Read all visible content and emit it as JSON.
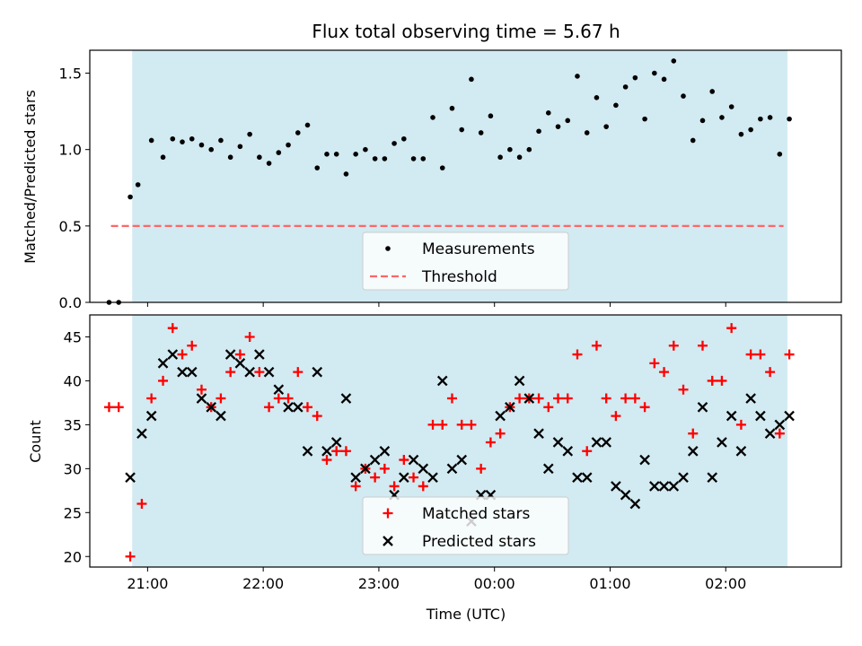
{
  "chart_data": [
    {
      "type": "scatter",
      "title": "Flux total observing time = 5.67 h",
      "ylabel": "Matched/Predicted stars",
      "xlabel": "",
      "ylim": [
        0,
        1.65
      ],
      "xlim_hours": [
        20.5,
        27.0
      ],
      "yticks": [
        "0.0",
        "0.5",
        "1.0",
        "1.5"
      ],
      "shaded_interval": [
        "20:52",
        "26:32"
      ],
      "shade_color": "#add8e6",
      "grid": false,
      "legend_position": "bottom-center",
      "legend": [
        "Measurements",
        "Threshold"
      ],
      "threshold": {
        "value": 0.5,
        "color": "#ff6666",
        "x_range": [
          "20:41",
          "26:30"
        ]
      },
      "series": [
        {
          "name": "Measurements",
          "marker": "dot",
          "color": "#000000",
          "x": [
            "20:40",
            "20:45",
            "20:51",
            "20:55",
            "21:02",
            "21:08",
            "21:13",
            "21:18",
            "21:23",
            "21:28",
            "21:33",
            "21:38",
            "21:43",
            "21:48",
            "21:53",
            "21:58",
            "22:03",
            "22:08",
            "22:13",
            "22:18",
            "22:23",
            "22:28",
            "22:33",
            "22:38",
            "22:43",
            "22:48",
            "22:53",
            "22:58",
            "23:03",
            "23:08",
            "23:13",
            "23:18",
            "23:23",
            "23:28",
            "23:33",
            "23:38",
            "23:43",
            "23:48",
            "23:53",
            "23:58",
            "24:03",
            "24:08",
            "24:13",
            "24:18",
            "24:23",
            "24:28",
            "24:33",
            "24:38",
            "24:43",
            "24:48",
            "24:53",
            "24:58",
            "25:03",
            "25:08",
            "25:13",
            "25:18",
            "25:23",
            "25:28",
            "25:33",
            "25:38",
            "25:43",
            "25:48",
            "25:53",
            "25:58",
            "26:03",
            "26:08",
            "26:13",
            "26:18",
            "26:23",
            "26:28",
            "26:33"
          ],
          "y": [
            0.0,
            0.0,
            0.69,
            0.77,
            1.06,
            0.95,
            1.07,
            1.05,
            1.07,
            1.03,
            1.0,
            1.06,
            0.95,
            1.02,
            1.1,
            0.95,
            0.91,
            0.98,
            1.03,
            1.11,
            1.16,
            0.88,
            0.97,
            0.97,
            0.84,
            0.97,
            1.0,
            0.94,
            0.94,
            1.04,
            1.07,
            0.94,
            0.94,
            1.21,
            0.88,
            1.27,
            1.13,
            1.46,
            1.11,
            1.22,
            0.95,
            1.0,
            0.95,
            1.0,
            1.12,
            1.24,
            1.15,
            1.19,
            1.48,
            1.11,
            1.34,
            1.15,
            1.29,
            1.41,
            1.47,
            1.2,
            1.5,
            1.46,
            1.58,
            1.35,
            1.06,
            1.19,
            1.38,
            1.21,
            1.28,
            1.1,
            1.13,
            1.2,
            1.21,
            0.97,
            1.2
          ]
        }
      ]
    },
    {
      "type": "scatter",
      "title": "",
      "xlabel": "Time (UTC)",
      "ylabel": "Count",
      "ylim": [
        18.8,
        47.5
      ],
      "xlim_hours": [
        20.5,
        27.0
      ],
      "yticks": [
        "20",
        "25",
        "30",
        "35",
        "40",
        "45"
      ],
      "xticks": [
        "21:00",
        "22:00",
        "23:00",
        "00:00",
        "01:00",
        "02:00"
      ],
      "shaded_interval": [
        "20:52",
        "26:32"
      ],
      "shade_color": "#add8e6",
      "grid": false,
      "legend_position": "bottom-center",
      "legend": [
        "Matched stars",
        "Predicted stars"
      ],
      "series": [
        {
          "name": "Matched stars",
          "marker": "plus",
          "color": "#ff0000",
          "x": [
            "20:40",
            "20:45",
            "20:51",
            "20:57",
            "21:02",
            "21:08",
            "21:13",
            "21:18",
            "21:23",
            "21:28",
            "21:33",
            "21:38",
            "21:43",
            "21:48",
            "21:53",
            "21:58",
            "22:03",
            "22:08",
            "22:13",
            "22:18",
            "22:23",
            "22:28",
            "22:33",
            "22:38",
            "22:43",
            "22:48",
            "22:53",
            "22:58",
            "23:03",
            "23:08",
            "23:13",
            "23:18",
            "23:23",
            "23:28",
            "23:33",
            "23:38",
            "23:43",
            "23:48",
            "23:53",
            "23:58",
            "24:03",
            "24:08",
            "24:13",
            "24:18",
            "24:23",
            "24:28",
            "24:33",
            "24:38",
            "24:43",
            "24:48",
            "24:53",
            "24:58",
            "25:03",
            "25:08",
            "25:13",
            "25:18",
            "25:23",
            "25:28",
            "25:33",
            "25:38",
            "25:43",
            "25:48",
            "25:53",
            "25:58",
            "26:03",
            "26:08",
            "26:13",
            "26:18",
            "26:23",
            "26:28",
            "26:33"
          ],
          "y": [
            37,
            37,
            20,
            26,
            38,
            40,
            46,
            43,
            44,
            39,
            37,
            38,
            41,
            43,
            45,
            41,
            37,
            38,
            38,
            41,
            37,
            36,
            31,
            32,
            32,
            28,
            30,
            29,
            30,
            28,
            31,
            29,
            28,
            35,
            35,
            38,
            35,
            35,
            30,
            33,
            34,
            37,
            38,
            38,
            38,
            37,
            38,
            38,
            43,
            32,
            44,
            38,
            36,
            38,
            38,
            37,
            42,
            41,
            44,
            39,
            34,
            44,
            40,
            40,
            46,
            35,
            43,
            43,
            41,
            34,
            43
          ]
        },
        {
          "name": "Predicted stars",
          "marker": "x",
          "color": "#000000",
          "x": [
            "20:51",
            "20:57",
            "21:02",
            "21:08",
            "21:13",
            "21:18",
            "21:23",
            "21:28",
            "21:33",
            "21:38",
            "21:43",
            "21:48",
            "21:53",
            "21:58",
            "22:03",
            "22:08",
            "22:13",
            "22:18",
            "22:23",
            "22:28",
            "22:33",
            "22:38",
            "22:43",
            "22:48",
            "22:53",
            "22:58",
            "23:03",
            "23:08",
            "23:13",
            "23:18",
            "23:23",
            "23:28",
            "23:33",
            "23:38",
            "23:43",
            "23:48",
            "23:53",
            "23:58",
            "24:03",
            "24:08",
            "24:13",
            "24:18",
            "24:23",
            "24:28",
            "24:33",
            "24:38",
            "24:43",
            "24:48",
            "24:53",
            "24:58",
            "25:03",
            "25:08",
            "25:13",
            "25:18",
            "25:23",
            "25:28",
            "25:33",
            "25:38",
            "25:43",
            "25:48",
            "25:53",
            "25:58",
            "26:03",
            "26:08",
            "26:13",
            "26:18",
            "26:23",
            "26:28",
            "26:33"
          ],
          "y": [
            29,
            34,
            36,
            42,
            43,
            41,
            41,
            38,
            37,
            36,
            43,
            42,
            41,
            43,
            41,
            39,
            37,
            37,
            32,
            41,
            32,
            33,
            38,
            29,
            30,
            31,
            32,
            27,
            29,
            31,
            30,
            29,
            40,
            30,
            31,
            24,
            27,
            27,
            36,
            37,
            40,
            38,
            34,
            30,
            33,
            32,
            29,
            29,
            33,
            33,
            28,
            27,
            26,
            31,
            28,
            28,
            28,
            29,
            32,
            37,
            29,
            33,
            36,
            32,
            38,
            36,
            34,
            35,
            36
          ]
        }
      ]
    }
  ]
}
